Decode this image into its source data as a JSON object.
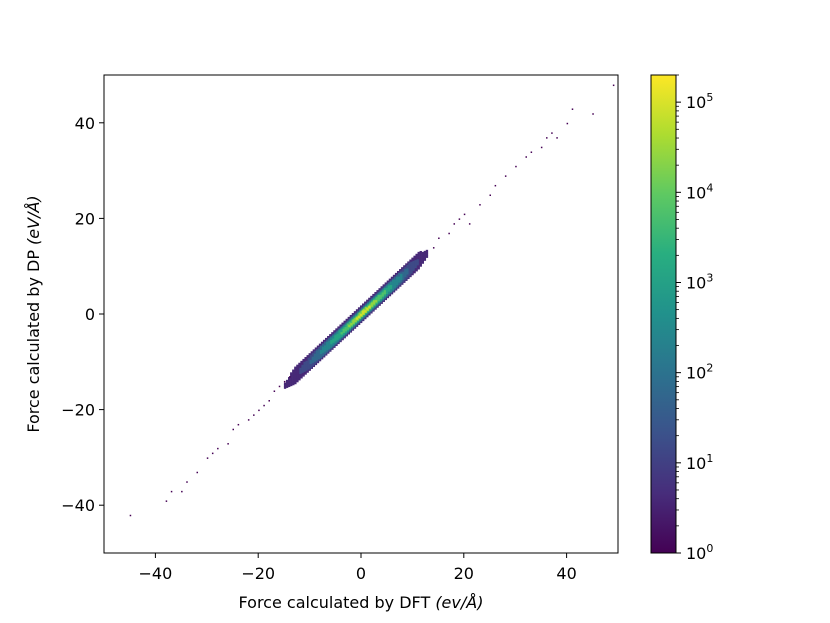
{
  "chart_data": {
    "type": "heatmap",
    "subtype": "2d-histogram",
    "title": "",
    "xlabel": {
      "prefix": "Force calculated by DFT ",
      "unit": "(ev/Å)"
    },
    "ylabel": {
      "prefix": "Force calculated by DP ",
      "unit": "(eV/Å)"
    },
    "xlim": [
      -50,
      50
    ],
    "ylim": [
      -50,
      50
    ],
    "xticks": [
      {
        "value": -40,
        "label": "−40"
      },
      {
        "value": -20,
        "label": "−20"
      },
      {
        "value": 0,
        "label": "0"
      },
      {
        "value": 20,
        "label": "20"
      },
      {
        "value": 40,
        "label": "40"
      }
    ],
    "yticks": [
      {
        "value": -40,
        "label": "−40"
      },
      {
        "value": -20,
        "label": "−20"
      },
      {
        "value": 0,
        "label": "0"
      },
      {
        "value": 20,
        "label": "20"
      },
      {
        "value": 40,
        "label": "40"
      }
    ],
    "grid": false,
    "colormap": "viridis",
    "colorbar": {
      "scale": "log",
      "range": [
        1,
        200000
      ],
      "ticks": [
        {
          "value": 1,
          "base": "10",
          "exp": "0"
        },
        {
          "value": 10,
          "base": "10",
          "exp": "1"
        },
        {
          "value": 100,
          "base": "10",
          "exp": "2"
        },
        {
          "value": 1000,
          "base": "10",
          "exp": "3"
        },
        {
          "value": 10000,
          "base": "10",
          "exp": "4"
        },
        {
          "value": 100000,
          "base": "10",
          "exp": "5"
        }
      ]
    },
    "density_bands": [
      {
        "x_range": [
          -15,
          13
        ],
        "half_width": 1.6,
        "count": 4
      },
      {
        "x_range": [
          -12,
          11
        ],
        "half_width": 1.3,
        "count": 15
      },
      {
        "x_range": [
          -10,
          9
        ],
        "half_width": 1.1,
        "count": 60
      },
      {
        "x_range": [
          -8,
          8
        ],
        "half_width": 0.9,
        "count": 250
      },
      {
        "x_range": [
          -6,
          6
        ],
        "half_width": 0.7,
        "count": 1200
      },
      {
        "x_range": [
          -4,
          4.5
        ],
        "half_width": 0.55,
        "count": 6000
      },
      {
        "x_range": [
          -2.5,
          3
        ],
        "half_width": 0.4,
        "count": 25000
      },
      {
        "x_range": [
          -1,
          1.5
        ],
        "half_width": 0.3,
        "count": 80000
      }
    ],
    "outliers": [
      [
        -45,
        -42
      ],
      [
        -38,
        -39
      ],
      [
        -37,
        -37
      ],
      [
        -35,
        -37
      ],
      [
        -34,
        -35
      ],
      [
        -32,
        -33
      ],
      [
        -30,
        -30
      ],
      [
        -29,
        -29
      ],
      [
        -28,
        -28
      ],
      [
        -26,
        -27
      ],
      [
        -25,
        -24
      ],
      [
        -24,
        -23
      ],
      [
        -22,
        -22
      ],
      [
        -21,
        -21
      ],
      [
        -20,
        -20
      ],
      [
        -19,
        -19
      ],
      [
        -18,
        -18
      ],
      [
        -17,
        -16
      ],
      [
        -16,
        -15
      ],
      [
        -15,
        -14
      ],
      [
        -14,
        -13
      ],
      [
        14,
        14
      ],
      [
        15,
        16
      ],
      [
        17,
        17
      ],
      [
        18,
        19
      ],
      [
        19,
        20
      ],
      [
        20,
        21
      ],
      [
        21,
        19
      ],
      [
        23,
        23
      ],
      [
        25,
        25
      ],
      [
        26,
        27
      ],
      [
        28,
        29
      ],
      [
        30,
        31
      ],
      [
        32,
        33
      ],
      [
        33,
        34
      ],
      [
        35,
        35
      ],
      [
        36,
        37
      ],
      [
        37,
        38
      ],
      [
        38,
        37
      ],
      [
        40,
        40
      ],
      [
        41,
        43
      ],
      [
        45,
        42
      ],
      [
        49,
        48
      ]
    ]
  }
}
